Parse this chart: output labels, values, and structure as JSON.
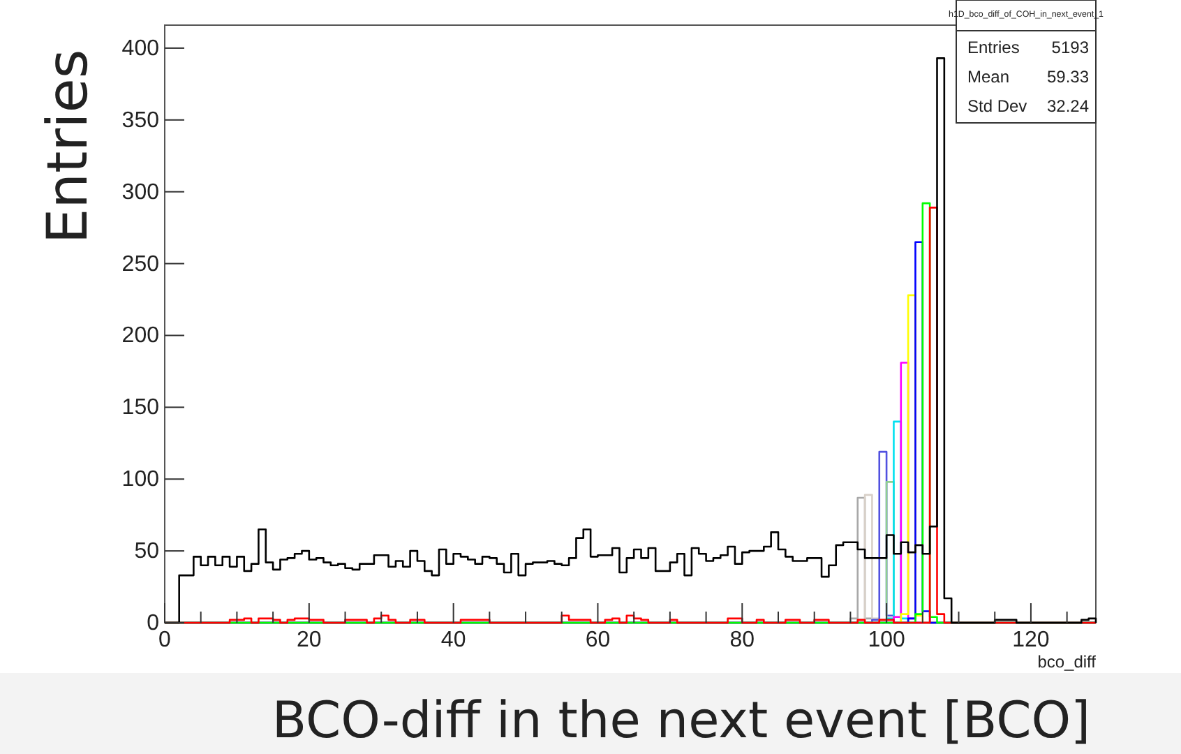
{
  "chart_data": {
    "type": "histogram",
    "xlabel": "BCO-diff in the next event [BCO]",
    "ylabel": "Entries",
    "annotations": [
      "h1D_bco_diff_of_COH_in_next_event_1",
      "Entries 5193",
      "Mean 59.33",
      "Std Dev 32.24",
      "bco_diff"
    ],
    "xlim": [
      0,
      129
    ],
    "ylim": [
      0,
      416
    ],
    "xticks": [
      0,
      {
        "value": 5,
        "label": null
      },
      {
        "value": 10,
        "label": null
      },
      {
        "value": 15,
        "label": null
      },
      20,
      {
        "value": 25,
        "label": null
      },
      {
        "value": 30,
        "label": null
      },
      {
        "value": 35,
        "label": null
      },
      40,
      {
        "value": 45,
        "label": null
      },
      {
        "value": 50,
        "label": null
      },
      {
        "value": 55,
        "label": null
      },
      60,
      {
        "value": 65,
        "label": null
      },
      {
        "value": 70,
        "label": null
      },
      {
        "value": 75,
        "label": null
      },
      80,
      {
        "value": 85,
        "label": null
      },
      {
        "value": 90,
        "label": null
      },
      {
        "value": 95,
        "label": null
      },
      100,
      {
        "value": 105,
        "label": null
      },
      {
        "value": 110,
        "label": null
      },
      {
        "value": 115,
        "label": null
      },
      120,
      {
        "value": 125,
        "label": null
      }
    ],
    "yticks": [
      0,
      50,
      100,
      150,
      200,
      250,
      300,
      350,
      400
    ],
    "bins": [
      0,
      1,
      2,
      3,
      4,
      5,
      6,
      7,
      8,
      9,
      10,
      11,
      12,
      13,
      14,
      15,
      16,
      17,
      18,
      19,
      20,
      21,
      22,
      23,
      24,
      25,
      26,
      27,
      28,
      29,
      30,
      31,
      32,
      33,
      34,
      35,
      36,
      37,
      38,
      39,
      40,
      41,
      42,
      43,
      44,
      45,
      46,
      47,
      48,
      49,
      50,
      51,
      52,
      53,
      54,
      55,
      56,
      57,
      58,
      59,
      60,
      61,
      62,
      63,
      64,
      65,
      66,
      67,
      68,
      69,
      70,
      71,
      72,
      73,
      74,
      75,
      76,
      77,
      78,
      79,
      80,
      81,
      82,
      83,
      84,
      85,
      86,
      87,
      88,
      89,
      90,
      91,
      92,
      93,
      94,
      95,
      96,
      97,
      98,
      99,
      100,
      101,
      102,
      103,
      104,
      105,
      106,
      107,
      108,
      109,
      110,
      111,
      112,
      113,
      114,
      115,
      116,
      117,
      118,
      119,
      120,
      121,
      122,
      123,
      124,
      125,
      126,
      127,
      128,
      129
    ],
    "series": [
      {
        "color": "#a8a8a8",
        "values": [
          0,
          0,
          0,
          0,
          0,
          0,
          0,
          0,
          0,
          0,
          0,
          0,
          0,
          0,
          0,
          0,
          0,
          0,
          0,
          0,
          0,
          0,
          0,
          0,
          0,
          0,
          0,
          0,
          0,
          0,
          0,
          0,
          0,
          0,
          0,
          0,
          0,
          0,
          0,
          0,
          0,
          0,
          0,
          0,
          0,
          0,
          0,
          0,
          0,
          0,
          0,
          0,
          0,
          0,
          0,
          0,
          0,
          0,
          0,
          0,
          0,
          0,
          0,
          0,
          0,
          0,
          0,
          0,
          0,
          0,
          0,
          0,
          0,
          0,
          0,
          0,
          0,
          0,
          0,
          0,
          0,
          0,
          0,
          0,
          0,
          0,
          0,
          0,
          0,
          0,
          0,
          0,
          0,
          0,
          0,
          3,
          87,
          3,
          0,
          0,
          0,
          0,
          0,
          0,
          0,
          0,
          0,
          0,
          0,
          0,
          0,
          0,
          0,
          0,
          0,
          0,
          0,
          0,
          0,
          0,
          0,
          0,
          0,
          0,
          0,
          0,
          0,
          0,
          0
        ]
      },
      {
        "color": "#d8d0c8",
        "values": [
          0,
          0,
          0,
          0,
          0,
          0,
          0,
          0,
          0,
          0,
          0,
          0,
          0,
          0,
          0,
          0,
          0,
          0,
          0,
          0,
          0,
          0,
          0,
          0,
          0,
          0,
          0,
          0,
          0,
          0,
          0,
          0,
          0,
          0,
          0,
          0,
          0,
          0,
          0,
          0,
          0,
          0,
          0,
          0,
          0,
          0,
          0,
          0,
          0,
          0,
          0,
          0,
          0,
          0,
          0,
          0,
          0,
          0,
          0,
          0,
          0,
          0,
          0,
          0,
          0,
          0,
          0,
          0,
          0,
          0,
          0,
          0,
          0,
          0,
          0,
          0,
          0,
          0,
          0,
          0,
          0,
          0,
          0,
          0,
          0,
          0,
          0,
          0,
          0,
          0,
          0,
          0,
          0,
          0,
          0,
          0,
          2,
          89,
          3,
          0,
          0,
          0,
          0,
          0,
          0,
          0,
          0,
          0,
          0,
          0,
          0,
          0,
          0,
          0,
          0,
          0,
          0,
          0,
          0,
          0,
          0,
          0,
          0,
          0,
          0,
          0,
          0,
          0,
          0
        ]
      },
      {
        "color": "#5050e0",
        "values": [
          0,
          0,
          0,
          0,
          0,
          0,
          0,
          0,
          0,
          0,
          0,
          0,
          0,
          0,
          0,
          0,
          0,
          0,
          0,
          0,
          0,
          0,
          0,
          0,
          0,
          0,
          0,
          0,
          0,
          0,
          0,
          0,
          0,
          0,
          0,
          0,
          0,
          0,
          0,
          0,
          0,
          0,
          0,
          0,
          0,
          0,
          0,
          0,
          0,
          0,
          0,
          0,
          0,
          0,
          0,
          0,
          0,
          0,
          0,
          0,
          0,
          0,
          0,
          0,
          0,
          0,
          0,
          0,
          0,
          0,
          0,
          0,
          0,
          0,
          0,
          0,
          0,
          0,
          0,
          0,
          0,
          0,
          0,
          0,
          0,
          0,
          0,
          0,
          0,
          0,
          0,
          0,
          0,
          0,
          0,
          0,
          0,
          0,
          2,
          119,
          5,
          0,
          0,
          0,
          0,
          0,
          0,
          0,
          0,
          0,
          0,
          0,
          0,
          0,
          0,
          0,
          0,
          0,
          0,
          0,
          0,
          0,
          0,
          0,
          0,
          0,
          0,
          0,
          0
        ]
      },
      {
        "color": "#90d090",
        "values": [
          0,
          0,
          0,
          0,
          0,
          0,
          0,
          0,
          0,
          0,
          0,
          0,
          0,
          0,
          0,
          0,
          0,
          0,
          0,
          0,
          0,
          0,
          0,
          0,
          0,
          0,
          0,
          0,
          0,
          0,
          0,
          0,
          0,
          0,
          0,
          0,
          0,
          0,
          0,
          0,
          0,
          0,
          0,
          0,
          0,
          0,
          0,
          0,
          0,
          0,
          0,
          0,
          0,
          0,
          0,
          0,
          0,
          0,
          0,
          0,
          0,
          0,
          0,
          0,
          0,
          0,
          0,
          0,
          0,
          0,
          0,
          0,
          0,
          0,
          0,
          0,
          0,
          0,
          0,
          0,
          0,
          0,
          0,
          0,
          0,
          0,
          0,
          0,
          0,
          0,
          0,
          0,
          0,
          0,
          0,
          0,
          0,
          0,
          0,
          2,
          98,
          4,
          0,
          0,
          0,
          0,
          0,
          0,
          0,
          0,
          0,
          0,
          0,
          0,
          0,
          0,
          0,
          0,
          0,
          0,
          0,
          0,
          0,
          0,
          0,
          0,
          0,
          0,
          0
        ]
      },
      {
        "color": "#00e0f0",
        "values": [
          0,
          0,
          0,
          0,
          0,
          0,
          0,
          0,
          0,
          0,
          0,
          0,
          0,
          0,
          0,
          0,
          0,
          0,
          0,
          0,
          0,
          0,
          0,
          0,
          0,
          0,
          0,
          0,
          0,
          0,
          0,
          0,
          0,
          0,
          0,
          0,
          0,
          0,
          0,
          0,
          0,
          0,
          0,
          0,
          0,
          0,
          0,
          0,
          0,
          0,
          0,
          0,
          0,
          0,
          0,
          0,
          0,
          0,
          0,
          0,
          0,
          0,
          0,
          0,
          0,
          0,
          0,
          0,
          0,
          0,
          0,
          0,
          0,
          0,
          0,
          0,
          0,
          0,
          0,
          0,
          0,
          0,
          0,
          0,
          0,
          0,
          0,
          0,
          0,
          0,
          0,
          0,
          0,
          0,
          0,
          0,
          0,
          0,
          0,
          0,
          3,
          140,
          3,
          0,
          0,
          0,
          0,
          0,
          0,
          0,
          0,
          0,
          0,
          0,
          0,
          0,
          0,
          0,
          0,
          0,
          0,
          0,
          0,
          0,
          0,
          0,
          0,
          0,
          0
        ]
      },
      {
        "color": "#ff00ff",
        "values": [
          0,
          0,
          0,
          0,
          0,
          0,
          0,
          0,
          0,
          0,
          0,
          0,
          0,
          0,
          0,
          0,
          0,
          0,
          0,
          0,
          0,
          0,
          0,
          0,
          0,
          0,
          0,
          0,
          0,
          0,
          0,
          0,
          0,
          0,
          0,
          0,
          0,
          0,
          0,
          0,
          0,
          0,
          0,
          0,
          0,
          0,
          0,
          0,
          0,
          0,
          0,
          0,
          0,
          0,
          0,
          0,
          0,
          0,
          0,
          0,
          0,
          0,
          0,
          0,
          0,
          0,
          0,
          0,
          0,
          0,
          0,
          0,
          0,
          0,
          0,
          0,
          0,
          0,
          0,
          0,
          0,
          0,
          0,
          0,
          0,
          0,
          0,
          0,
          0,
          0,
          0,
          0,
          0,
          0,
          0,
          0,
          0,
          0,
          0,
          0,
          0,
          4,
          181,
          3,
          0,
          0,
          0,
          0,
          0,
          0,
          0,
          0,
          0,
          0,
          0,
          0,
          0,
          0,
          0,
          0,
          0,
          0,
          0,
          0,
          0,
          0,
          0,
          0,
          0
        ]
      },
      {
        "color": "#ffff00",
        "values": [
          0,
          0,
          0,
          0,
          0,
          0,
          0,
          0,
          0,
          0,
          0,
          0,
          0,
          0,
          0,
          0,
          0,
          0,
          0,
          0,
          0,
          0,
          0,
          0,
          0,
          0,
          0,
          0,
          0,
          0,
          0,
          0,
          0,
          0,
          0,
          0,
          0,
          0,
          0,
          0,
          0,
          0,
          0,
          0,
          0,
          0,
          0,
          0,
          0,
          0,
          0,
          0,
          0,
          0,
          0,
          0,
          0,
          0,
          0,
          0,
          0,
          0,
          0,
          0,
          0,
          0,
          0,
          0,
          0,
          0,
          0,
          0,
          0,
          0,
          0,
          0,
          0,
          0,
          0,
          0,
          0,
          0,
          0,
          0,
          0,
          0,
          0,
          0,
          0,
          0,
          0,
          0,
          0,
          0,
          0,
          0,
          0,
          0,
          0,
          0,
          0,
          0,
          6,
          228,
          5,
          0,
          0,
          0,
          0,
          0,
          0,
          0,
          0,
          0,
          0,
          0,
          0,
          0,
          0,
          0,
          0,
          0,
          0,
          0,
          0,
          0,
          0,
          0,
          0
        ]
      },
      {
        "color": "#0000ff",
        "values": [
          0,
          0,
          0,
          0,
          0,
          0,
          0,
          0,
          0,
          0,
          0,
          0,
          0,
          0,
          0,
          0,
          0,
          0,
          0,
          0,
          0,
          0,
          0,
          0,
          0,
          0,
          0,
          0,
          0,
          0,
          0,
          0,
          0,
          0,
          0,
          0,
          0,
          0,
          0,
          0,
          0,
          0,
          0,
          0,
          0,
          0,
          0,
          0,
          0,
          0,
          0,
          0,
          0,
          0,
          0,
          0,
          0,
          0,
          0,
          0,
          0,
          0,
          0,
          0,
          0,
          0,
          0,
          0,
          0,
          0,
          0,
          0,
          0,
          0,
          0,
          0,
          0,
          0,
          0,
          0,
          0,
          0,
          0,
          0,
          0,
          0,
          0,
          0,
          0,
          0,
          0,
          0,
          0,
          0,
          0,
          0,
          0,
          0,
          0,
          0,
          0,
          0,
          0,
          3,
          265,
          8,
          0,
          0,
          0,
          0,
          0,
          0,
          0,
          0,
          0,
          0,
          0,
          0,
          0,
          0,
          0,
          0,
          0,
          0,
          0,
          0,
          0,
          0,
          0
        ]
      },
      {
        "color": "#00ff00",
        "values": [
          0,
          0,
          0,
          0,
          0,
          0,
          0,
          0,
          0,
          0,
          0,
          0,
          0,
          0,
          0,
          0,
          0,
          0,
          0,
          0,
          0,
          0,
          0,
          0,
          0,
          0,
          0,
          0,
          0,
          0,
          0,
          0,
          0,
          0,
          0,
          0,
          0,
          0,
          0,
          0,
          0,
          0,
          0,
          0,
          0,
          0,
          0,
          0,
          0,
          0,
          0,
          0,
          0,
          0,
          0,
          0,
          0,
          0,
          0,
          0,
          0,
          0,
          0,
          0,
          0,
          0,
          0,
          0,
          0,
          0,
          0,
          0,
          0,
          0,
          0,
          0,
          0,
          0,
          0,
          0,
          0,
          0,
          0,
          0,
          0,
          0,
          0,
          0,
          0,
          0,
          0,
          0,
          0,
          0,
          0,
          0,
          0,
          0,
          0,
          0,
          0,
          0,
          0,
          0,
          6,
          292,
          4,
          0,
          0,
          0,
          0,
          0,
          0,
          0,
          0,
          0,
          0,
          0,
          0,
          0,
          0,
          0,
          0,
          0,
          0,
          0,
          0,
          0,
          0
        ]
      },
      {
        "color": "#ff0000",
        "values": [
          0,
          0,
          0,
          0,
          0,
          0,
          0,
          0,
          0,
          2,
          2,
          3,
          0,
          3,
          3,
          2,
          0,
          2,
          3,
          3,
          2,
          2,
          0,
          0,
          0,
          2,
          2,
          2,
          0,
          3,
          5,
          2,
          0,
          0,
          2,
          2,
          0,
          0,
          0,
          0,
          0,
          2,
          2,
          2,
          2,
          0,
          0,
          0,
          0,
          0,
          0,
          0,
          0,
          0,
          0,
          5,
          2,
          2,
          2,
          0,
          0,
          2,
          3,
          0,
          5,
          3,
          2,
          0,
          0,
          0,
          2,
          0,
          0,
          0,
          0,
          0,
          0,
          0,
          3,
          3,
          0,
          0,
          2,
          0,
          0,
          0,
          2,
          2,
          0,
          0,
          2,
          2,
          0,
          0,
          0,
          0,
          2,
          0,
          0,
          2,
          2,
          0,
          0,
          0,
          0,
          0,
          289,
          6,
          0,
          0,
          0,
          0,
          0,
          0,
          0,
          0,
          0,
          0,
          0,
          0,
          0,
          0,
          0,
          0,
          0,
          0,
          0,
          0,
          0
        ]
      },
      {
        "color": "#000000",
        "values": [
          null,
          null,
          33,
          33,
          46,
          40,
          46,
          40,
          46,
          39,
          46,
          36,
          41,
          65,
          42,
          37,
          44,
          45,
          48,
          50,
          44,
          45,
          42,
          40,
          41,
          38,
          37,
          41,
          41,
          47,
          47,
          39,
          43,
          39,
          50,
          43,
          36,
          33,
          51,
          41,
          48,
          46,
          44,
          41,
          46,
          45,
          41,
          35,
          48,
          33,
          41,
          42,
          42,
          43,
          41,
          40,
          45,
          59,
          65,
          46,
          47,
          47,
          52,
          35,
          45,
          51,
          45,
          52,
          36,
          36,
          42,
          48,
          33,
          52,
          48,
          43,
          45,
          47,
          53,
          41,
          49,
          50,
          50,
          53,
          63,
          51,
          46,
          43,
          43,
          45,
          45,
          32,
          40,
          54,
          56,
          56,
          51,
          45,
          45,
          45,
          61,
          48,
          56,
          49,
          54,
          48,
          67,
          393,
          17,
          0,
          0,
          0,
          0,
          0,
          0,
          2,
          2,
          2,
          0,
          0,
          0,
          0,
          0,
          0,
          0,
          0,
          0,
          2,
          3
        ]
      }
    ]
  }
}
